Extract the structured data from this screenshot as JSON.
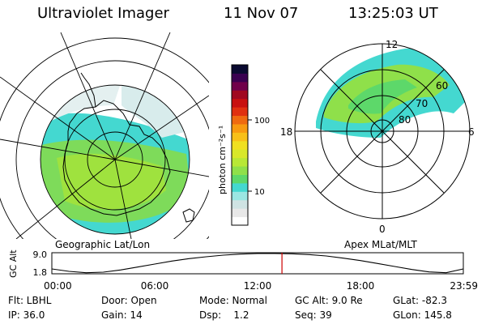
{
  "header": {
    "title": "Ultraviolet Imager",
    "date": "11 Nov 07",
    "time": "13:25:03 UT"
  },
  "geographic_panel": {
    "label": "Geographic Lat/Lon"
  },
  "apex_panel": {
    "label": "Apex MLat/MLT",
    "mlt_labels": [
      "12",
      "18",
      "6",
      "0"
    ],
    "mlat_labels": [
      "60",
      "70",
      "80"
    ]
  },
  "colorbar": {
    "unit_label": "photon cm⁻²s⁻¹",
    "ticks": [
      "100",
      "10"
    ],
    "colors": [
      "#ffffff",
      "#e8e8e8",
      "#cfe3e3",
      "#9be6e2",
      "#44d8d0",
      "#5dd86a",
      "#8fe04a",
      "#b8e836",
      "#d8e82a",
      "#f0e020",
      "#f8c018",
      "#f89a10",
      "#ef6a10",
      "#e03010",
      "#c81010",
      "#a00820",
      "#70004a",
      "#3a0050",
      "#0a0a30"
    ],
    "scale": "log"
  },
  "chart_data": {
    "type": "line",
    "title": "",
    "ylabel": "GC Alt",
    "y_ticks": [
      "9.0",
      "1.8"
    ],
    "x_ticks": [
      "00:00",
      "06:00",
      "12:00",
      "18:00",
      "23:59"
    ],
    "xlim_hours": [
      0,
      24
    ],
    "ylim": [
      1.8,
      9.0
    ],
    "x": [
      0,
      1,
      2,
      3,
      4,
      5,
      6,
      7,
      8,
      9,
      10,
      11,
      12,
      13,
      14,
      15,
      16,
      17,
      18,
      19,
      20,
      21,
      22,
      23,
      24
    ],
    "values": [
      3.3,
      2.4,
      1.9,
      2.1,
      2.9,
      4.0,
      5.1,
      6.2,
      7.1,
      7.8,
      8.4,
      8.8,
      9.0,
      9.0,
      8.9,
      8.6,
      8.1,
      7.3,
      6.4,
      5.3,
      4.2,
      3.1,
      2.2,
      1.9,
      3.3
    ],
    "marker_time_hours": 13.42,
    "marker_color": "#cc0000"
  },
  "info": {
    "row1": [
      "Flt: LBHL",
      "Door: Open",
      "Mode: Normal",
      "GC Alt: 9.0 Re",
      "GLat: -82.3"
    ],
    "row2": [
      "IP: 36.0",
      "Gain: 14",
      "Dsp:    1.2",
      "Seq: 39",
      "GLon: 145.8"
    ]
  }
}
